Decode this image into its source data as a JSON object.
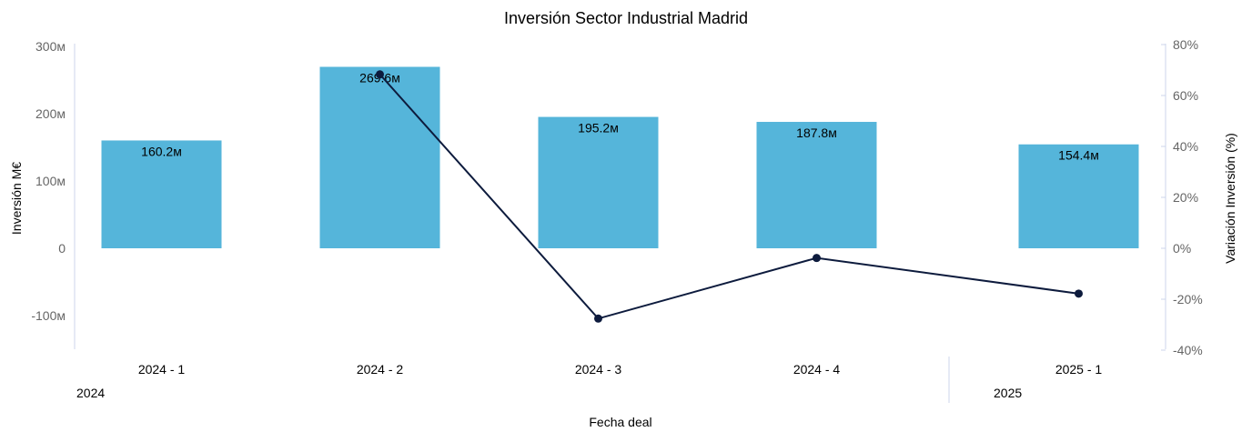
{
  "chart_data": {
    "type": "bar",
    "title": "Inversión Sector Industrial Madrid",
    "xlabel": "Fecha deal",
    "ylabel": "Inversión M€",
    "y2label": "Variación Inversión (%)",
    "categories": [
      "2024 - 1",
      "2024 - 2",
      "2024 - 3",
      "2024 - 4",
      "2025 - 1"
    ],
    "groups": [
      {
        "label": "2024",
        "categories": [
          "2024 - 1",
          "2024 - 2",
          "2024 - 3",
          "2024 - 4"
        ]
      },
      {
        "label": "2025",
        "categories": [
          "2025 - 1"
        ]
      }
    ],
    "series": [
      {
        "type": "bar",
        "axis": "left",
        "values": [
          160.2,
          269.6,
          195.2,
          187.8,
          154.4
        ],
        "labels": [
          "160.2м",
          "269.6м",
          "195.2м",
          "187.8м",
          "154.4м"
        ],
        "color": "#55b5da"
      },
      {
        "type": "line",
        "axis": "right",
        "values": [
          null,
          68.3,
          -27.6,
          -3.8,
          -17.8
        ],
        "color": "#0d1b3d"
      }
    ],
    "ylim": [
      -150,
      300
    ],
    "yticks": [
      -100,
      0,
      100,
      200,
      300
    ],
    "ytick_labels": [
      "-100м",
      "0",
      "100м",
      "200м",
      "300м"
    ],
    "y2lim": [
      -40,
      80
    ],
    "y2ticks": [
      -40,
      -20,
      0,
      20,
      40,
      60,
      80
    ],
    "y2tick_labels": [
      "-40%",
      "-20%",
      "0%",
      "20%",
      "40%",
      "60%",
      "80%"
    ],
    "grid": false,
    "legend": "none"
  }
}
